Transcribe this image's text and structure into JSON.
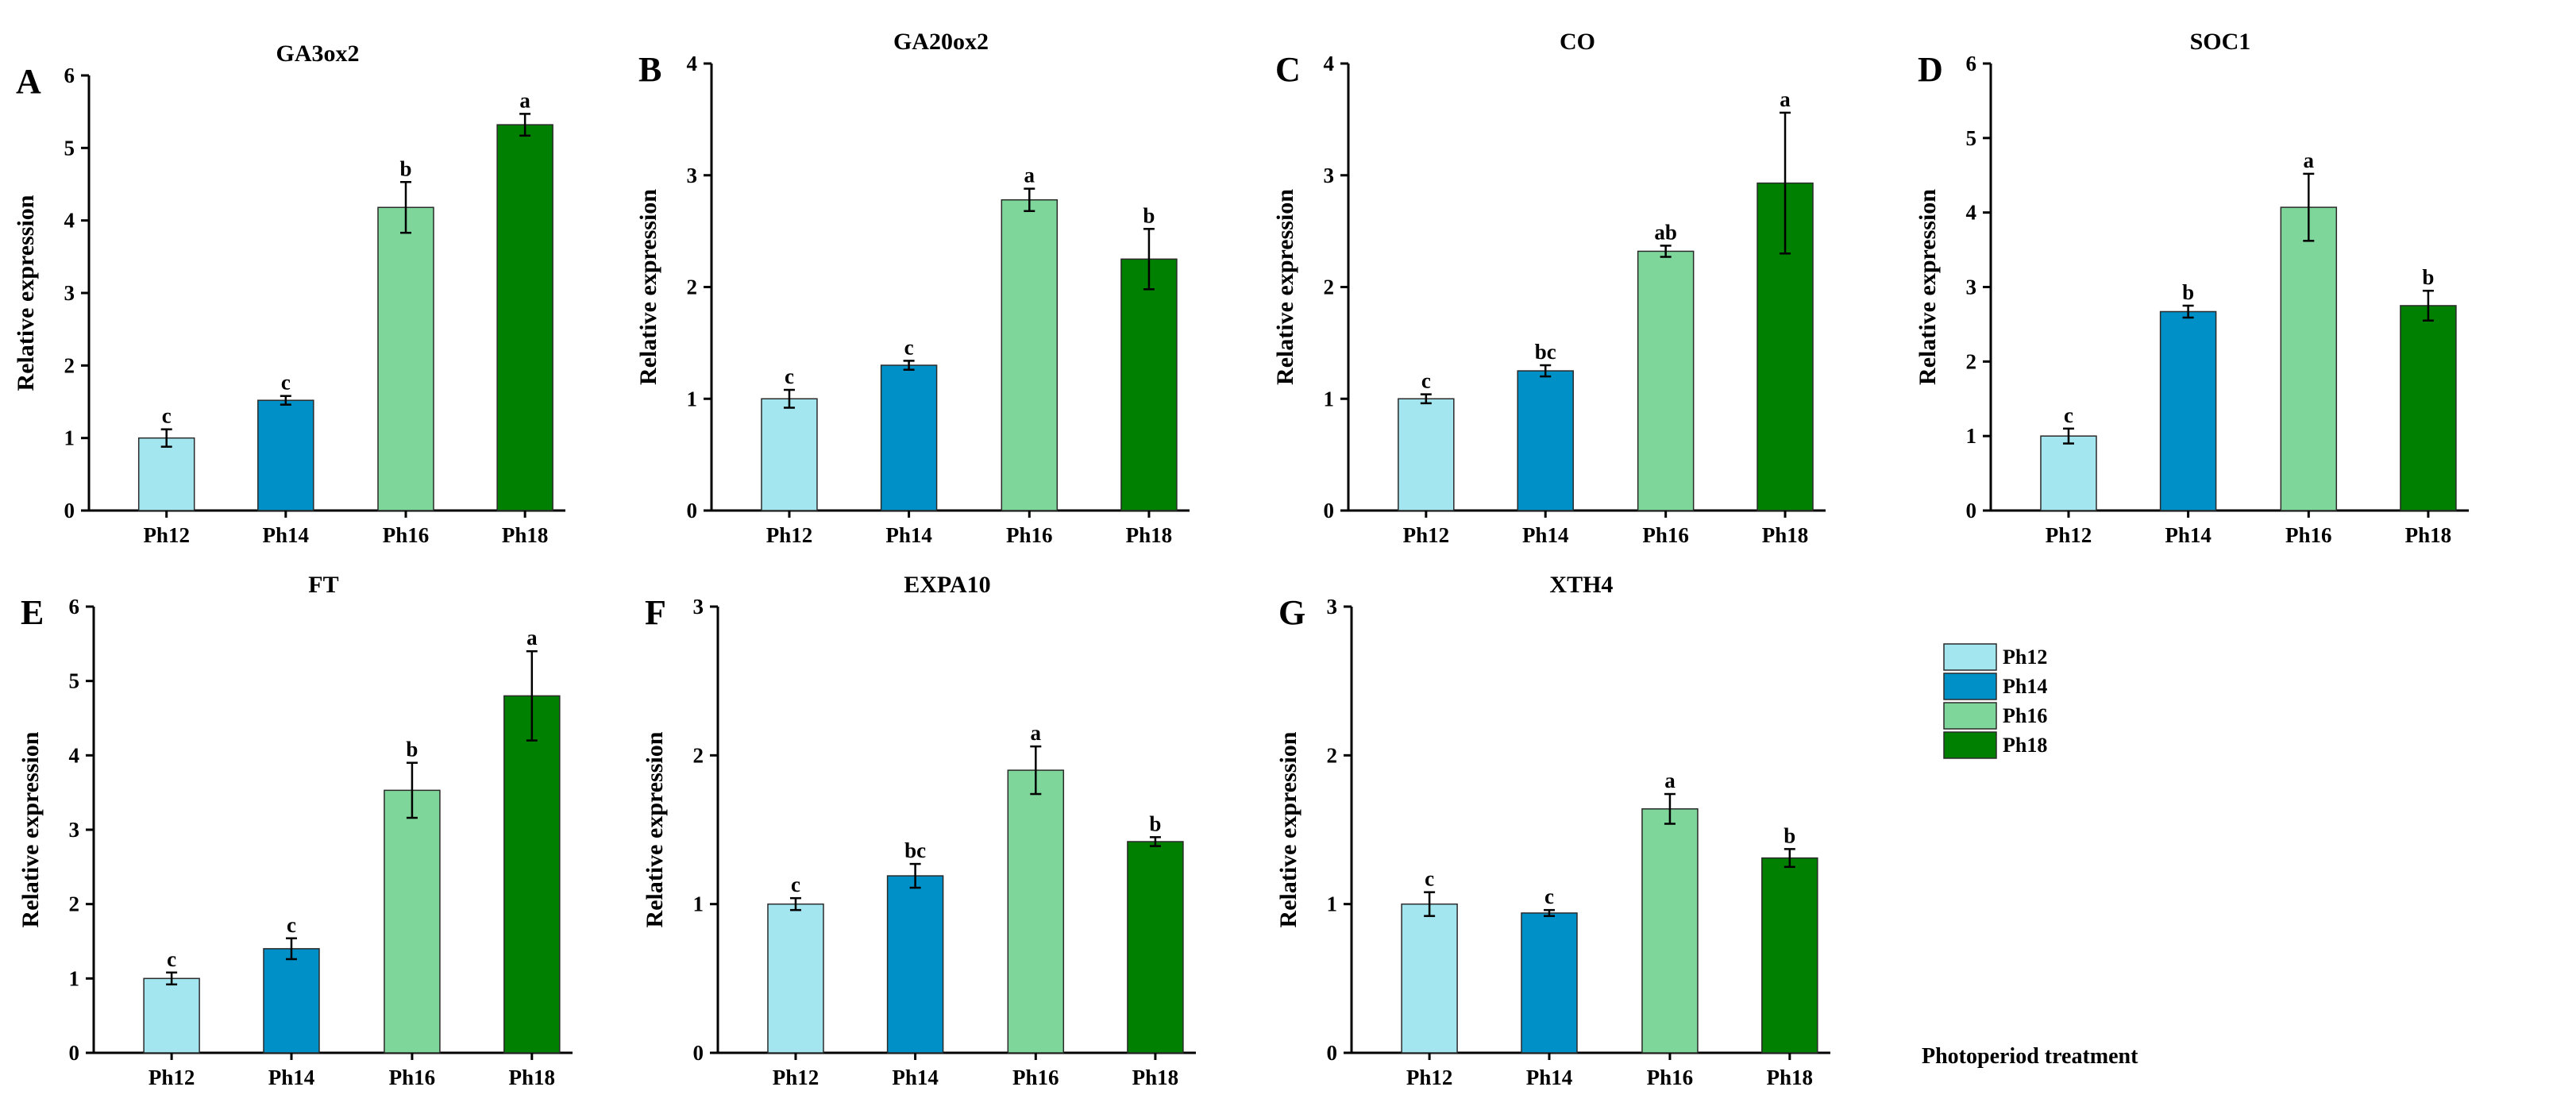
{
  "figure": {
    "x_axis_label": "Photoperiod treatment"
  },
  "legend": [
    {
      "label": "Ph12",
      "color": "#a3e6f0"
    },
    {
      "label": "Ph14",
      "color": "#0090c8"
    },
    {
      "label": "Ph16",
      "color": "#7fd69a"
    },
    {
      "label": "Ph18",
      "color": "#008000"
    }
  ],
  "chart_data": [
    {
      "panel": "A",
      "type": "bar",
      "title": "GA3ox2",
      "ylabel": "Relative expression",
      "ylim": [
        0,
        6
      ],
      "yticks": [
        "0",
        "1",
        "2",
        "3",
        "4",
        "5",
        "6"
      ],
      "categories": [
        "Ph12",
        "Ph14",
        "Ph16",
        "Ph18"
      ],
      "values": [
        1.0,
        1.52,
        4.18,
        5.32
      ],
      "errors": [
        0.12,
        0.06,
        0.35,
        0.15
      ],
      "labels": [
        "c",
        "c",
        "b",
        "a"
      ]
    },
    {
      "panel": "B",
      "type": "bar",
      "title": "GA20ox2",
      "ylabel": "Relative expression",
      "ylim": [
        0,
        4
      ],
      "yticks": [
        "0",
        "1",
        "2",
        "3",
        "4"
      ],
      "categories": [
        "Ph12",
        "Ph14",
        "Ph16",
        "Ph18"
      ],
      "values": [
        1.0,
        1.3,
        2.78,
        2.25
      ],
      "errors": [
        0.08,
        0.04,
        0.1,
        0.27
      ],
      "labels": [
        "c",
        "c",
        "a",
        "b"
      ]
    },
    {
      "panel": "C",
      "type": "bar",
      "title": "CO",
      "ylabel": "Relative expression",
      "ylim": [
        0,
        4
      ],
      "yticks": [
        "0",
        "1",
        "2",
        "3",
        "4"
      ],
      "categories": [
        "Ph12",
        "Ph14",
        "Ph16",
        "Ph18"
      ],
      "values": [
        1.0,
        1.25,
        2.32,
        2.93
      ],
      "errors": [
        0.04,
        0.05,
        0.05,
        0.63
      ],
      "labels": [
        "c",
        "bc",
        "ab",
        "a"
      ]
    },
    {
      "panel": "D",
      "type": "bar",
      "title": "SOC1",
      "ylabel": "Relative expression",
      "ylim": [
        0,
        6
      ],
      "yticks": [
        "0",
        "1",
        "2",
        "3",
        "4",
        "5",
        "6"
      ],
      "categories": [
        "Ph12",
        "Ph14",
        "Ph16",
        "Ph18"
      ],
      "values": [
        1.0,
        2.67,
        4.07,
        2.75
      ],
      "errors": [
        0.1,
        0.08,
        0.45,
        0.2
      ],
      "labels": [
        "c",
        "b",
        "a",
        "b"
      ]
    },
    {
      "panel": "E",
      "type": "bar",
      "title": "FT",
      "ylabel": "Relative expression",
      "ylim": [
        0,
        6
      ],
      "yticks": [
        "0",
        "1",
        "2",
        "3",
        "4",
        "5",
        "6"
      ],
      "categories": [
        "Ph12",
        "Ph14",
        "Ph16",
        "Ph18"
      ],
      "values": [
        1.0,
        1.4,
        3.53,
        4.8
      ],
      "errors": [
        0.08,
        0.14,
        0.37,
        0.6
      ],
      "labels": [
        "c",
        "c",
        "b",
        "a"
      ]
    },
    {
      "panel": "F",
      "type": "bar",
      "title": "EXPA10",
      "ylabel": "Relative expression",
      "ylim": [
        0,
        3
      ],
      "yticks": [
        "0",
        "1",
        "2",
        "3"
      ],
      "categories": [
        "Ph12",
        "Ph14",
        "Ph16",
        "Ph18"
      ],
      "values": [
        1.0,
        1.19,
        1.9,
        1.42
      ],
      "errors": [
        0.04,
        0.08,
        0.16,
        0.03
      ],
      "labels": [
        "c",
        "bc",
        "a",
        "b"
      ]
    },
    {
      "panel": "G",
      "type": "bar",
      "title": "XTH4",
      "ylabel": "Relative expression",
      "ylim": [
        0,
        3
      ],
      "yticks": [
        "0",
        "1",
        "2",
        "3"
      ],
      "categories": [
        "Ph12",
        "Ph14",
        "Ph16",
        "Ph18"
      ],
      "values": [
        1.0,
        0.94,
        1.64,
        1.31
      ],
      "errors": [
        0.08,
        0.02,
        0.1,
        0.06
      ],
      "labels": [
        "c",
        "c",
        "a",
        "b"
      ]
    }
  ]
}
